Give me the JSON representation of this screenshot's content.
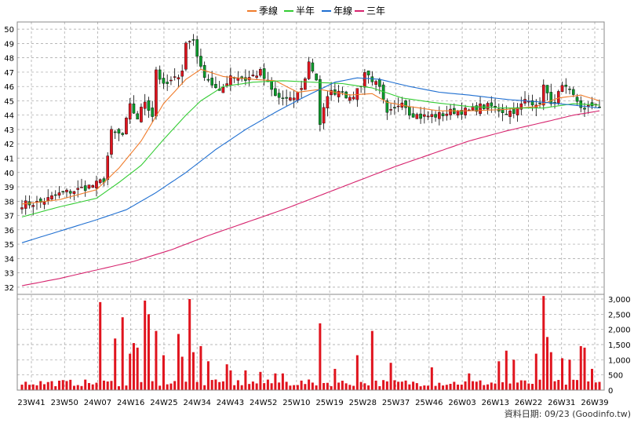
{
  "legend": [
    {
      "label": "季線",
      "color": "#f07c2b"
    },
    {
      "label": "半年",
      "color": "#33cc33"
    },
    {
      "label": "年線",
      "color": "#1f6fd1"
    },
    {
      "label": "三年",
      "color": "#d6246e"
    }
  ],
  "footer": "資料日期: 09/23  (Goodinfo.tw)",
  "colors": {
    "up": "#e0141e",
    "down": "#0b9a2b",
    "wick": "#000000",
    "volume": "#e0141e",
    "grid": "#a0a0a0",
    "bg": "#ffffff"
  },
  "chart_data": [
    {
      "type": "candlestick",
      "title": "",
      "ylim": [
        31.5,
        50.5
      ],
      "yticks": [
        32,
        33,
        34,
        35,
        36,
        37,
        38,
        39,
        40,
        41,
        42,
        43,
        44,
        45,
        46,
        47,
        48,
        49,
        50
      ],
      "x_tick_labels": [
        "23W41",
        "23W50",
        "24W07",
        "24W16",
        "24W25",
        "24W34",
        "24W43",
        "24W52",
        "25W10",
        "25W19",
        "25W28",
        "25W37",
        "25W46",
        "26W03",
        "26W13",
        "26W22",
        "26W31",
        "26W39"
      ],
      "n_weeks": 156,
      "anchors": [
        [
          0,
          37.8
        ],
        [
          5,
          37.9
        ],
        [
          10,
          38.5
        ],
        [
          15,
          38.8
        ],
        [
          20,
          39.2
        ],
        [
          22,
          39.5
        ],
        [
          24,
          42.8
        ],
        [
          27,
          42.6
        ],
        [
          29,
          44.6
        ],
        [
          31,
          43.8
        ],
        [
          33,
          45.0
        ],
        [
          35,
          44.0
        ],
        [
          36,
          47.2
        ],
        [
          38,
          46.0
        ],
        [
          41,
          46.5
        ],
        [
          43,
          47.2
        ],
        [
          44,
          49.0
        ],
        [
          46,
          49.3
        ],
        [
          48,
          47.2
        ],
        [
          50,
          46.5
        ],
        [
          53,
          45.5
        ],
        [
          56,
          46.8
        ],
        [
          60,
          46.5
        ],
        [
          64,
          47.0
        ],
        [
          68,
          45.3
        ],
        [
          72,
          45.0
        ],
        [
          74,
          45.5
        ],
        [
          76,
          46.5
        ],
        [
          77,
          47.8
        ],
        [
          79,
          46.5
        ],
        [
          80,
          43.2
        ],
        [
          82,
          45.5
        ],
        [
          86,
          45.8
        ],
        [
          88,
          45.0
        ],
        [
          91,
          46.2
        ],
        [
          92,
          47.0
        ],
        [
          94,
          46.5
        ],
        [
          96,
          45.8
        ],
        [
          98,
          44.0
        ],
        [
          100,
          44.4
        ],
        [
          102,
          45.1
        ],
        [
          104,
          44.2
        ],
        [
          107,
          43.9
        ],
        [
          112,
          44.0
        ],
        [
          116,
          44.3
        ],
        [
          120,
          44.3
        ],
        [
          123,
          44.6
        ],
        [
          126,
          44.6
        ],
        [
          130,
          44.2
        ],
        [
          133,
          44.4
        ],
        [
          135,
          45.0
        ],
        [
          138,
          44.9
        ],
        [
          139,
          44.6
        ],
        [
          140,
          46.3
        ],
        [
          142,
          44.6
        ],
        [
          145,
          45.9
        ],
        [
          147,
          45.6
        ],
        [
          149,
          45.0
        ],
        [
          151,
          44.3
        ],
        [
          154,
          44.9
        ],
        [
          155,
          44.6
        ]
      ],
      "series": [
        {
          "name": "季線",
          "points": [
            [
              0,
              37.8
            ],
            [
              10,
              38.1
            ],
            [
              20,
              38.8
            ],
            [
              26,
              40.3
            ],
            [
              32,
              42.2
            ],
            [
              38,
              44.8
            ],
            [
              44,
              46.5
            ],
            [
              48,
              47.2
            ],
            [
              54,
              46.7
            ],
            [
              62,
              46.5
            ],
            [
              68,
              46.4
            ],
            [
              74,
              45.6
            ],
            [
              80,
              45.8
            ],
            [
              88,
              45.4
            ],
            [
              94,
              45.5
            ],
            [
              98,
              44.9
            ],
            [
              104,
              44.6
            ],
            [
              112,
              44.3
            ],
            [
              120,
              44.3
            ],
            [
              130,
              44.4
            ],
            [
              138,
              44.6
            ],
            [
              144,
              45.2
            ],
            [
              150,
              45.4
            ],
            [
              155,
              45.0
            ]
          ]
        },
        {
          "name": "半年",
          "points": [
            [
              0,
              36.9
            ],
            [
              10,
              37.6
            ],
            [
              20,
              38.2
            ],
            [
              26,
              39.3
            ],
            [
              32,
              40.5
            ],
            [
              38,
              42.3
            ],
            [
              44,
              44.0
            ],
            [
              48,
              45.0
            ],
            [
              54,
              46.0
            ],
            [
              62,
              46.3
            ],
            [
              70,
              46.4
            ],
            [
              78,
              46.3
            ],
            [
              86,
              46.2
            ],
            [
              94,
              45.9
            ],
            [
              102,
              45.2
            ],
            [
              110,
              44.9
            ],
            [
              120,
              44.6
            ],
            [
              130,
              44.5
            ],
            [
              140,
              44.5
            ],
            [
              148,
              44.8
            ],
            [
              155,
              44.7
            ]
          ]
        },
        {
          "name": "年線",
          "points": [
            [
              0,
              35.1
            ],
            [
              10,
              35.9
            ],
            [
              20,
              36.7
            ],
            [
              28,
              37.4
            ],
            [
              36,
              38.6
            ],
            [
              44,
              40.0
            ],
            [
              52,
              41.6
            ],
            [
              60,
              43.0
            ],
            [
              68,
              44.2
            ],
            [
              76,
              45.3
            ],
            [
              84,
              46.3
            ],
            [
              90,
              46.6
            ],
            [
              96,
              46.5
            ],
            [
              104,
              46.0
            ],
            [
              112,
              45.6
            ],
            [
              120,
              45.4
            ],
            [
              130,
              45.1
            ],
            [
              140,
              44.9
            ],
            [
              148,
              44.7
            ],
            [
              155,
              44.5
            ]
          ]
        },
        {
          "name": "三年",
          "points": [
            [
              0,
              32.1
            ],
            [
              10,
              32.6
            ],
            [
              20,
              33.2
            ],
            [
              30,
              33.8
            ],
            [
              40,
              34.6
            ],
            [
              50,
              35.6
            ],
            [
              60,
              36.5
            ],
            [
              70,
              37.4
            ],
            [
              80,
              38.4
            ],
            [
              90,
              39.4
            ],
            [
              100,
              40.4
            ],
            [
              110,
              41.3
            ],
            [
              120,
              42.2
            ],
            [
              130,
              42.9
            ],
            [
              140,
              43.5
            ],
            [
              148,
              44.0
            ],
            [
              155,
              44.3
            ]
          ]
        }
      ]
    },
    {
      "type": "bar",
      "title": "",
      "ylim": [
        0,
        3000
      ],
      "yticks": [
        0,
        500,
        1000,
        1500,
        2000,
        2500,
        3000
      ],
      "ytick_labels": [
        "0",
        "500",
        "1,000",
        "1,500",
        "2,000",
        "2,500",
        "3,000"
      ],
      "spikes": [
        [
          21,
          2900
        ],
        [
          25,
          1700
        ],
        [
          27,
          2400
        ],
        [
          29,
          1200
        ],
        [
          30,
          1550
        ],
        [
          31,
          1400
        ],
        [
          33,
          2950
        ],
        [
          34,
          2500
        ],
        [
          36,
          1950
        ],
        [
          38,
          1150
        ],
        [
          42,
          1850
        ],
        [
          43,
          1100
        ],
        [
          45,
          3000
        ],
        [
          46,
          1250
        ],
        [
          48,
          1450
        ],
        [
          50,
          950
        ],
        [
          55,
          850
        ],
        [
          56,
          650
        ],
        [
          60,
          650
        ],
        [
          64,
          600
        ],
        [
          68,
          550
        ],
        [
          70,
          550
        ],
        [
          80,
          2200
        ],
        [
          84,
          700
        ],
        [
          90,
          1150
        ],
        [
          94,
          1950
        ],
        [
          99,
          900
        ],
        [
          110,
          750
        ],
        [
          120,
          550
        ],
        [
          128,
          950
        ],
        [
          130,
          1300
        ],
        [
          132,
          1000
        ],
        [
          138,
          1200
        ],
        [
          140,
          3100
        ],
        [
          141,
          1750
        ],
        [
          142,
          1250
        ],
        [
          145,
          1050
        ],
        [
          147,
          1000
        ],
        [
          150,
          1450
        ],
        [
          151,
          1400
        ],
        [
          153,
          700
        ]
      ],
      "baseline": 280,
      "series": [
        {
          "values_note": ""
        }
      ]
    }
  ]
}
